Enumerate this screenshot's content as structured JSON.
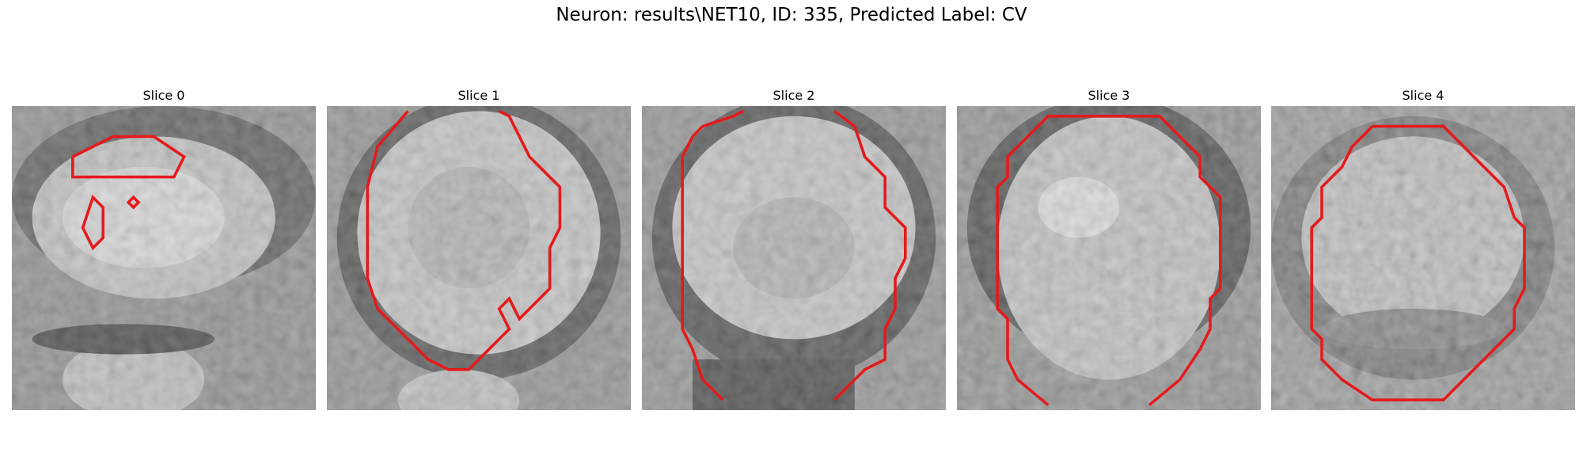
{
  "figure": {
    "title": "Neuron: results\\NET10, ID: 335, Predicted Label: CV",
    "contour_color": "#e41a1c",
    "colormap": "gray"
  },
  "slices": [
    {
      "label": "Slice 0"
    },
    {
      "label": "Slice 1"
    },
    {
      "label": "Slice 2"
    },
    {
      "label": "Slice 3"
    },
    {
      "label": "Slice 4"
    }
  ]
}
